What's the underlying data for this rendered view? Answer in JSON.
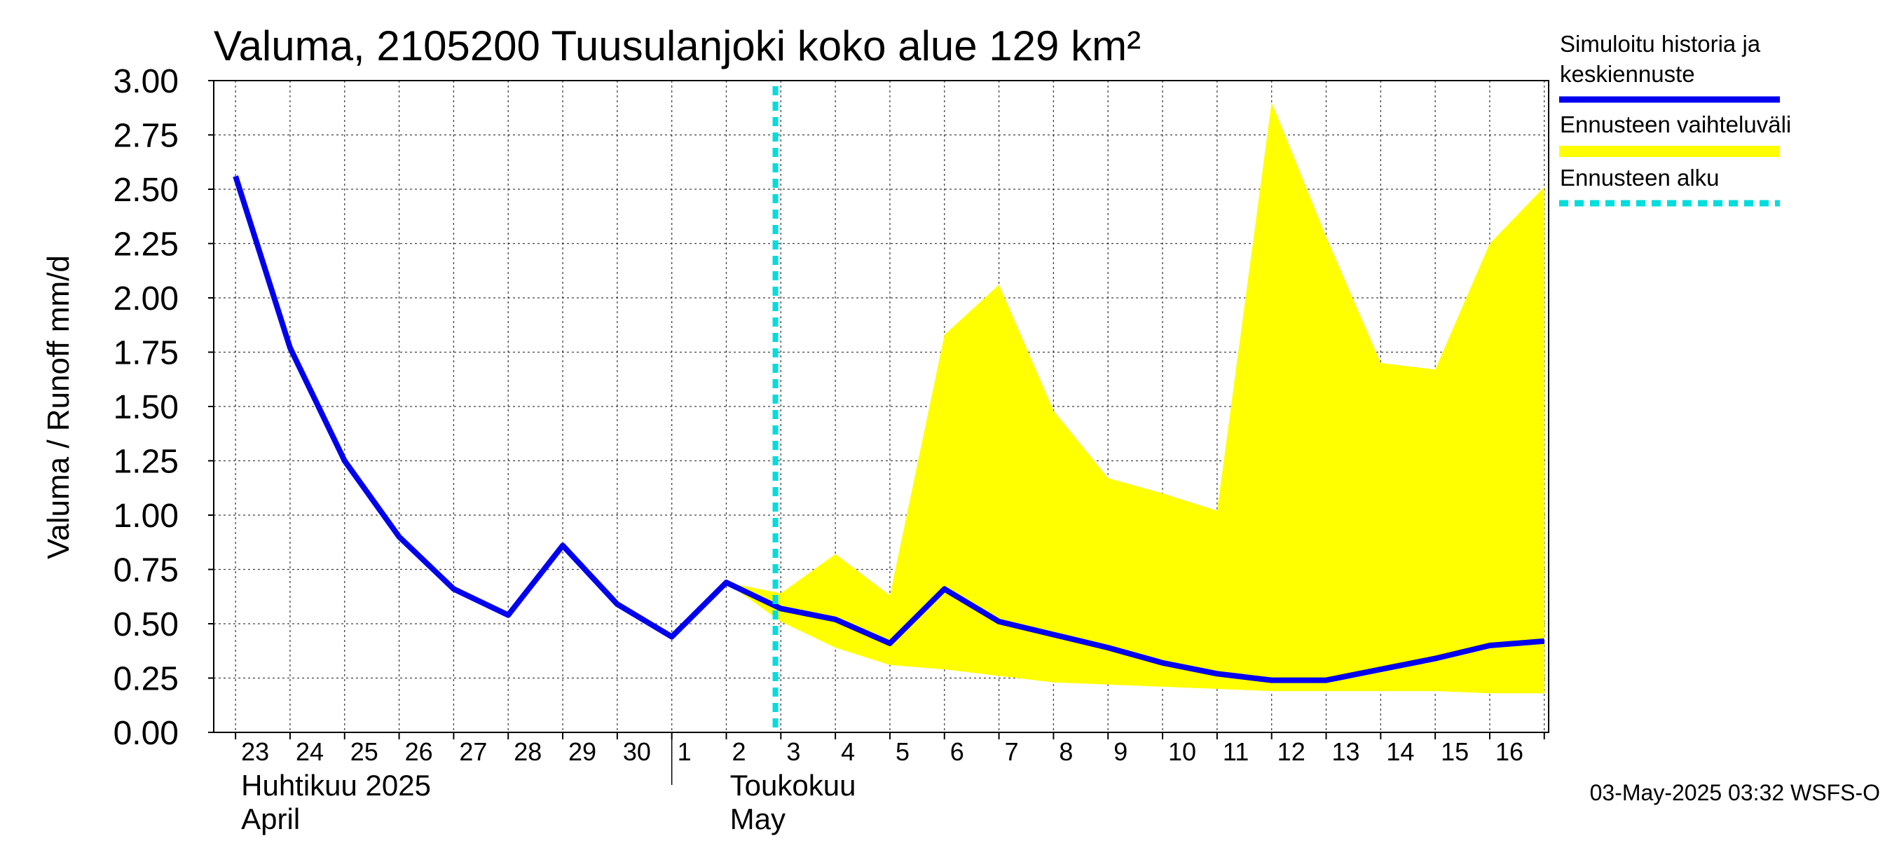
{
  "chart_data": {
    "type": "line",
    "title": "Valuma, 2105200 Tuusulanjoki koko alue 129 km²",
    "ylabel": "Valuma / Runoff     mm/d",
    "ylim": [
      0,
      3.0
    ],
    "yticks": [
      "0.00",
      "0.25",
      "0.50",
      "0.75",
      "1.00",
      "1.25",
      "1.50",
      "1.75",
      "2.00",
      "2.25",
      "2.50",
      "2.75",
      "3.00"
    ],
    "x": [
      "2025-04-23",
      "2025-04-24",
      "2025-04-25",
      "2025-04-26",
      "2025-04-27",
      "2025-04-28",
      "2025-04-29",
      "2025-04-30",
      "2025-05-01",
      "2025-05-02",
      "2025-05-03",
      "2025-05-04",
      "2025-05-05",
      "2025-05-06",
      "2025-05-07",
      "2025-05-08",
      "2025-05-09",
      "2025-05-10",
      "2025-05-11",
      "2025-05-12",
      "2025-05-13",
      "2025-05-14",
      "2025-05-15",
      "2025-05-16",
      "2025-05-17"
    ],
    "xtick_labels": [
      "23",
      "24",
      "25",
      "26",
      "27",
      "28",
      "29",
      "30",
      "1",
      "2",
      "3",
      "4",
      "5",
      "6",
      "7",
      "8",
      "9",
      "10",
      "11",
      "12",
      "13",
      "14",
      "15",
      "16"
    ],
    "month_labels": [
      {
        "line1": "Huhtikuu  2025",
        "line2": "April"
      },
      {
        "line1": "Toukokuu",
        "line2": "May"
      }
    ],
    "series": [
      {
        "name": "Simuloitu historia ja keskiennuste",
        "color": "#0000ee",
        "values": [
          2.56,
          1.77,
          1.25,
          0.9,
          0.66,
          0.54,
          0.86,
          0.59,
          0.44,
          0.69,
          0.57,
          0.52,
          0.41,
          0.66,
          0.51,
          0.45,
          0.39,
          0.32,
          0.27,
          0.24,
          0.24,
          0.29,
          0.34,
          0.4,
          0.42
        ]
      }
    ],
    "band": {
      "name": "Ennusteen vaihteluväli",
      "color": "#ffff00",
      "x": [
        "2025-05-02",
        "2025-05-03",
        "2025-05-04",
        "2025-05-05",
        "2025-05-06",
        "2025-05-07",
        "2025-05-08",
        "2025-05-09",
        "2025-05-10",
        "2025-05-11",
        "2025-05-12",
        "2025-05-13",
        "2025-05-14",
        "2025-05-15",
        "2025-05-16",
        "2025-05-17"
      ],
      "upper": [
        0.69,
        0.64,
        0.82,
        0.63,
        1.83,
        2.06,
        1.48,
        1.17,
        1.1,
        1.02,
        2.9,
        2.28,
        1.7,
        1.67,
        2.25,
        2.51
      ],
      "lower": [
        0.69,
        0.51,
        0.39,
        0.31,
        0.29,
        0.26,
        0.23,
        0.22,
        0.21,
        0.2,
        0.19,
        0.19,
        0.19,
        0.19,
        0.18,
        0.18
      ]
    },
    "forecast_start": {
      "name": "Ennusteen alku",
      "color": "#00dddd",
      "x": "2025-05-03"
    },
    "grid": true,
    "legend": {
      "placement": "right",
      "items": [
        {
          "line1": "Simuloitu historia ja",
          "line2": "keskiennuste",
          "color": "#0000ee",
          "style": "solid"
        },
        {
          "line1": "Ennusteen vaihteluväli",
          "line2": "",
          "color": "#ffff00",
          "style": "band"
        },
        {
          "line1": "Ennusteen alku",
          "line2": "",
          "color": "#00dddd",
          "style": "dashed"
        }
      ]
    }
  },
  "footer": "03-May-2025 03:32 WSFS-O"
}
